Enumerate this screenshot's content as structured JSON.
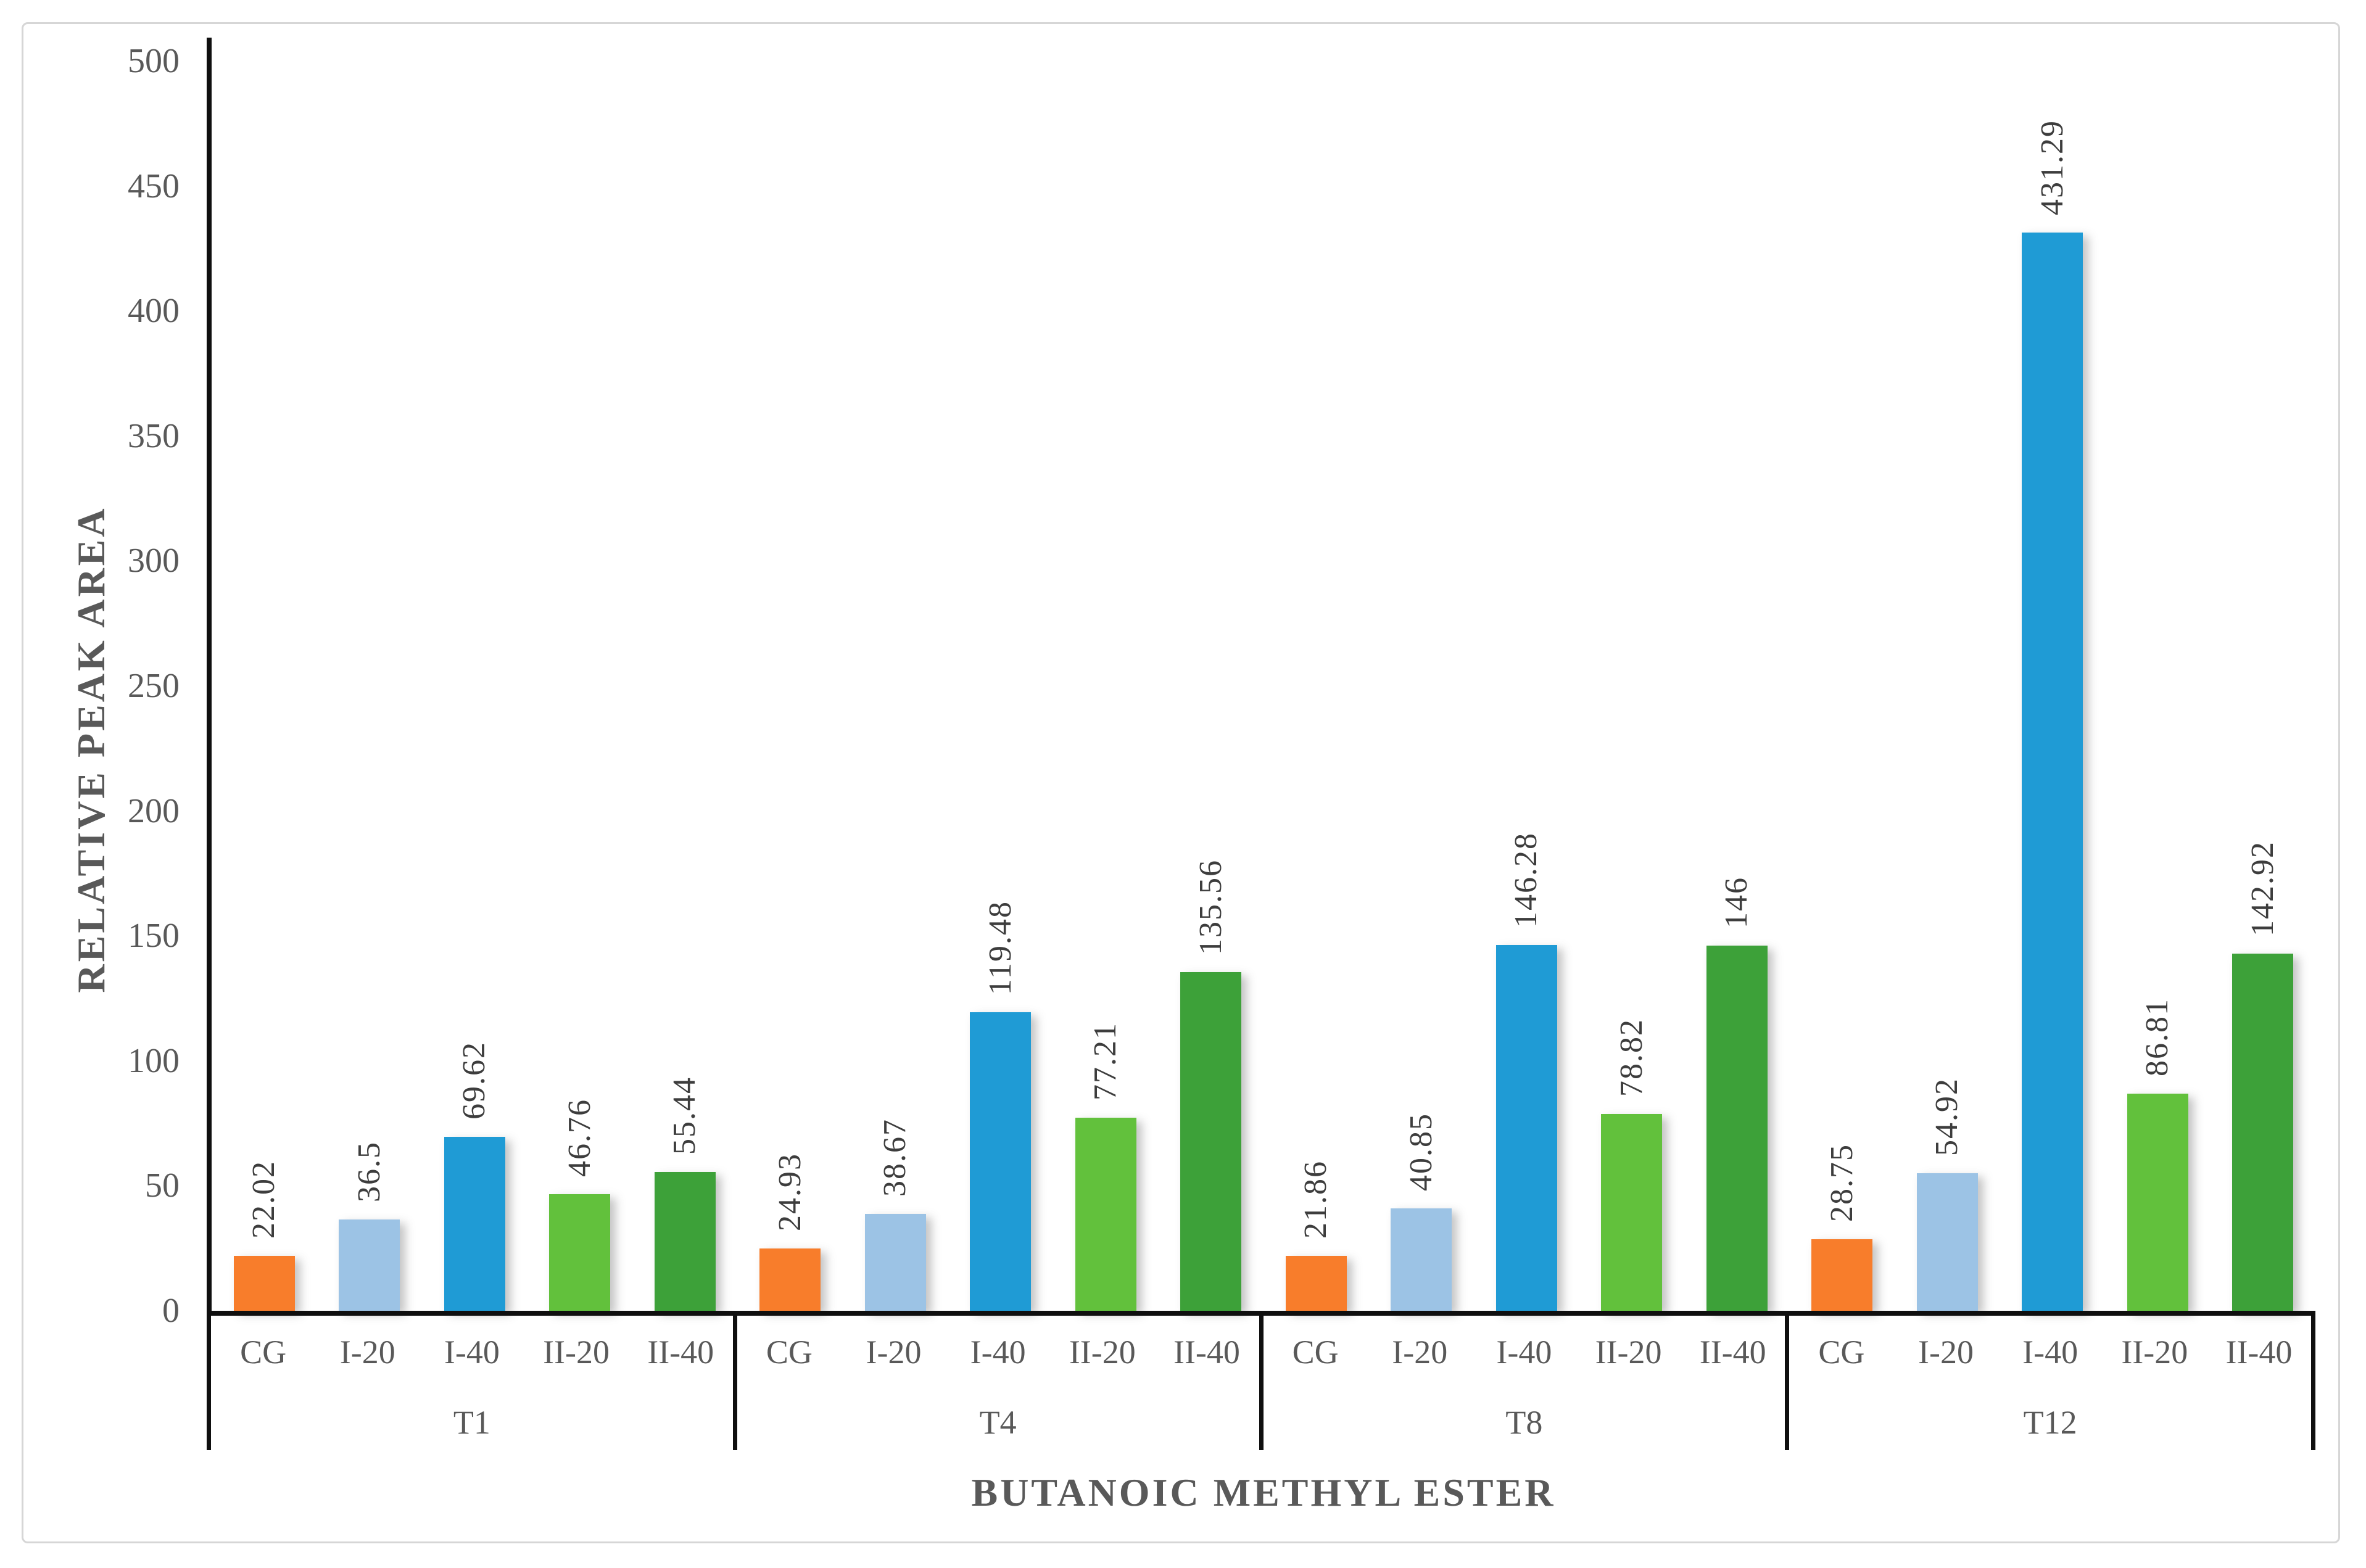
{
  "chart_data": {
    "type": "bar",
    "title": "",
    "xlabel": "BUTANOIC METHYL ESTER",
    "ylabel": "RELATIVE PEAK AREA",
    "ylim": [
      0,
      500
    ],
    "yticks": [
      0,
      50,
      100,
      150,
      200,
      250,
      300,
      350,
      400,
      450,
      500
    ],
    "grid": false,
    "legend": "none",
    "data_labels_rotated_vertical": true,
    "bar_categories": [
      "CG",
      "I-20",
      "I-40",
      "II-20",
      "II-40"
    ],
    "bar_colors": [
      "#F87D2B",
      "#9CC3E5",
      "#1F9BD5",
      "#62C13C",
      "#3DA139"
    ],
    "groups": [
      {
        "label": "T1",
        "values": [
          22.02,
          36.5,
          69.62,
          46.76,
          55.44
        ]
      },
      {
        "label": "T4",
        "values": [
          24.93,
          38.67,
          119.48,
          77.21,
          135.56
        ]
      },
      {
        "label": "T8",
        "values": [
          21.86,
          40.85,
          146.28,
          78.82,
          146
        ]
      },
      {
        "label": "T12",
        "values": [
          28.75,
          54.92,
          431.29,
          86.81,
          142.92
        ]
      }
    ]
  },
  "colors": {
    "axis_line": "#0f0f0f",
    "tick_text": "#595959",
    "axis_title_text": "#595959",
    "data_label_text": "#3d3d3d",
    "frame_border": "#d6d6d6"
  }
}
